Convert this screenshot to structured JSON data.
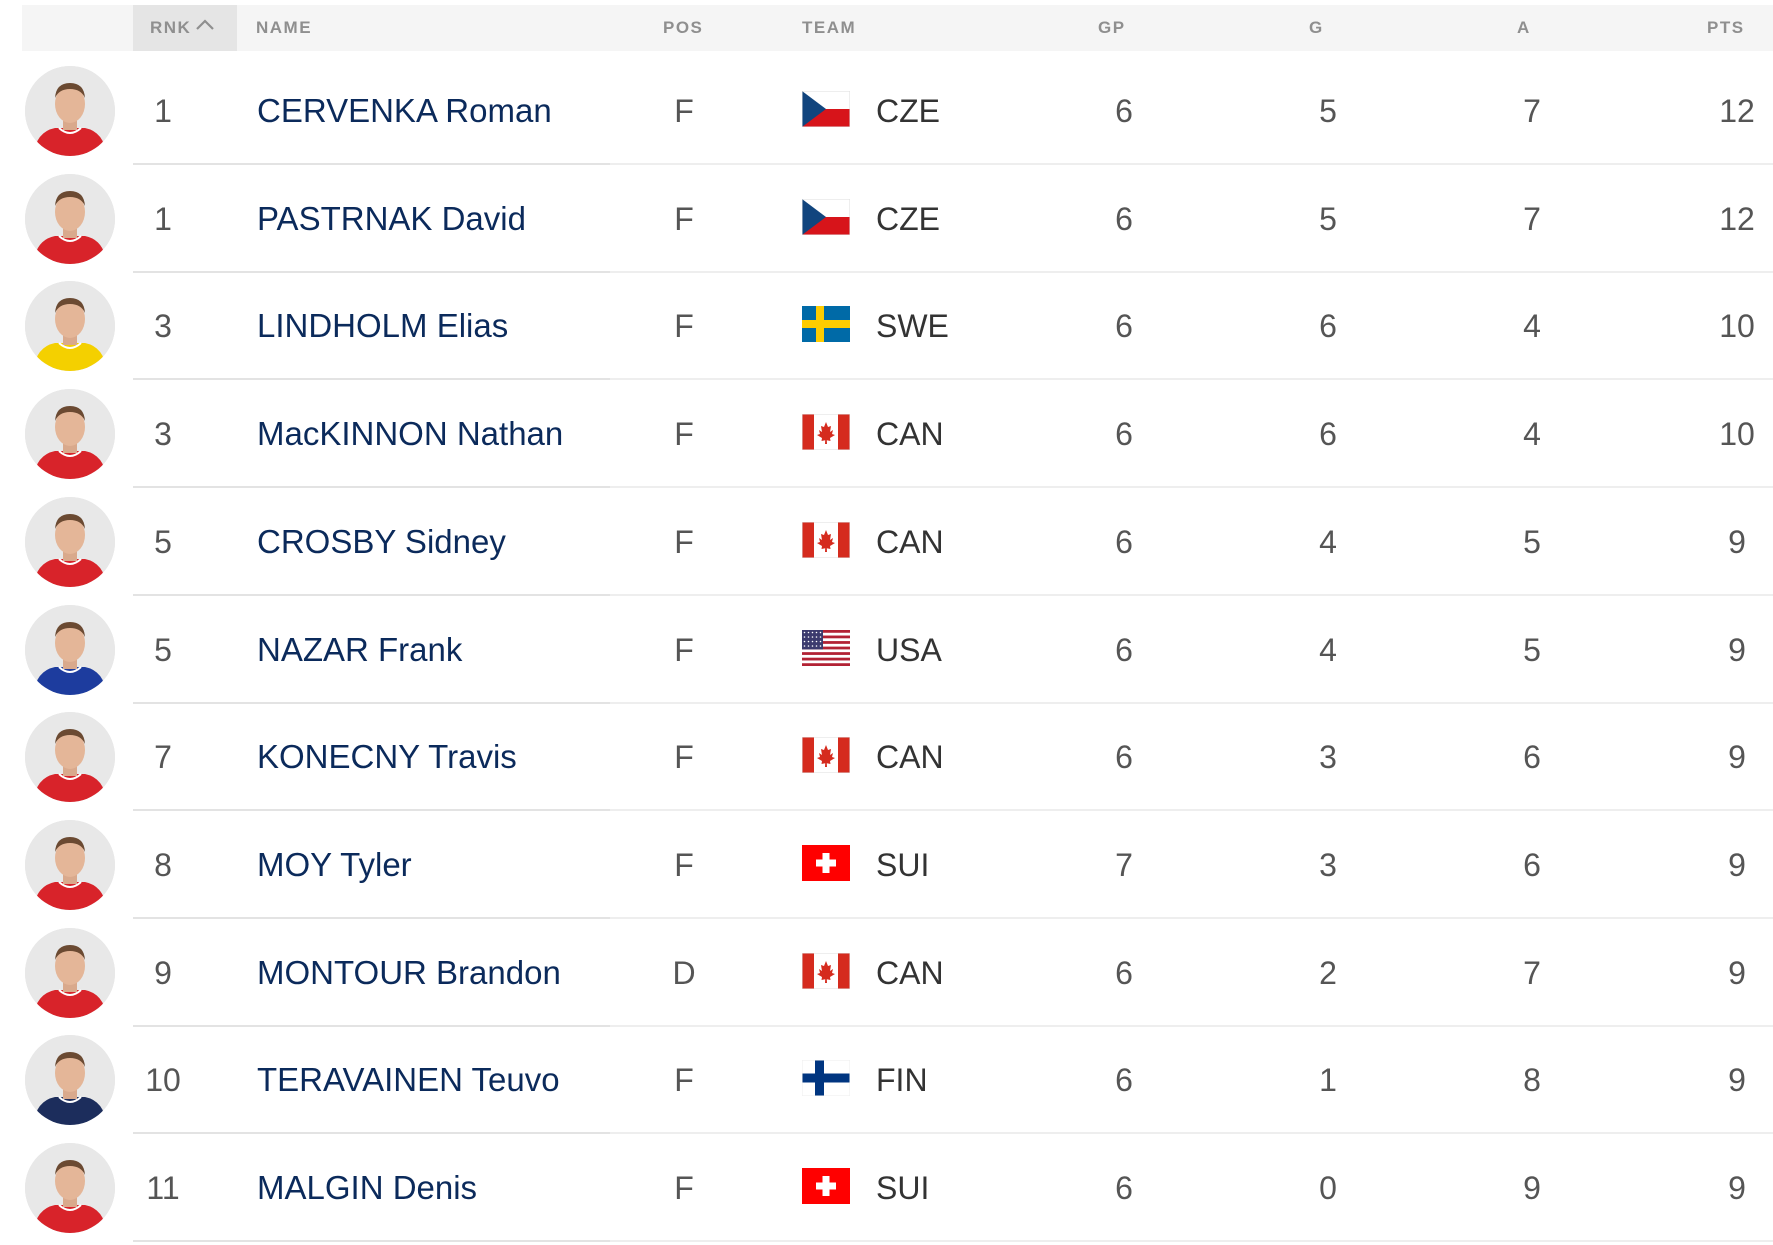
{
  "header": {
    "rnk": "RNK",
    "name": "NAME",
    "pos": "POS",
    "team": "TEAM",
    "gp": "GP",
    "g": "G",
    "a": "A",
    "pts": "PTS",
    "sort_icon": "chevron-up-icon"
  },
  "rows": [
    {
      "rank": "1",
      "name": "CERVENKA Roman",
      "pos": "F",
      "team": "CZE",
      "flag": "czech-flag",
      "jersey": "red",
      "gp": "6",
      "g": "5",
      "a": "7",
      "pts": "12"
    },
    {
      "rank": "1",
      "name": "PASTRNAK David",
      "pos": "F",
      "team": "CZE",
      "flag": "czech-flag",
      "jersey": "red",
      "gp": "6",
      "g": "5",
      "a": "7",
      "pts": "12"
    },
    {
      "rank": "3",
      "name": "LINDHOLM Elias",
      "pos": "F",
      "team": "SWE",
      "flag": "sweden-flag",
      "jersey": "yellow",
      "gp": "6",
      "g": "6",
      "a": "4",
      "pts": "10"
    },
    {
      "rank": "3",
      "name": "MacKINNON Nathan",
      "pos": "F",
      "team": "CAN",
      "flag": "canada-flag",
      "jersey": "red",
      "gp": "6",
      "g": "6",
      "a": "4",
      "pts": "10"
    },
    {
      "rank": "5",
      "name": "CROSBY Sidney",
      "pos": "F",
      "team": "CAN",
      "flag": "canada-flag",
      "jersey": "red",
      "gp": "6",
      "g": "4",
      "a": "5",
      "pts": "9"
    },
    {
      "rank": "5",
      "name": "NAZAR Frank",
      "pos": "F",
      "team": "USA",
      "flag": "usa-flag",
      "jersey": "blue",
      "gp": "6",
      "g": "4",
      "a": "5",
      "pts": "9"
    },
    {
      "rank": "7",
      "name": "KONECNY Travis",
      "pos": "F",
      "team": "CAN",
      "flag": "canada-flag",
      "jersey": "red",
      "gp": "6",
      "g": "3",
      "a": "6",
      "pts": "9"
    },
    {
      "rank": "8",
      "name": "MOY Tyler",
      "pos": "F",
      "team": "SUI",
      "flag": "swiss-flag",
      "jersey": "red",
      "gp": "7",
      "g": "3",
      "a": "6",
      "pts": "9"
    },
    {
      "rank": "9",
      "name": "MONTOUR Brandon",
      "pos": "D",
      "team": "CAN",
      "flag": "canada-flag",
      "jersey": "red",
      "gp": "6",
      "g": "2",
      "a": "7",
      "pts": "9"
    },
    {
      "rank": "10",
      "name": "TERAVAINEN Teuvo",
      "pos": "F",
      "team": "FIN",
      "flag": "finland-flag",
      "jersey": "navy",
      "gp": "6",
      "g": "1",
      "a": "8",
      "pts": "9"
    },
    {
      "rank": "11",
      "name": "MALGIN Denis",
      "pos": "F",
      "team": "SUI",
      "flag": "swiss-flag",
      "jersey": "red",
      "gp": "6",
      "g": "0",
      "a": "9",
      "pts": "9"
    }
  ],
  "colors": {
    "name_link": "#0b2a5b",
    "header_text": "#8f8f8f",
    "header_bg": "#f5f5f5",
    "sorted_col_bg": "#e5e5e5"
  }
}
